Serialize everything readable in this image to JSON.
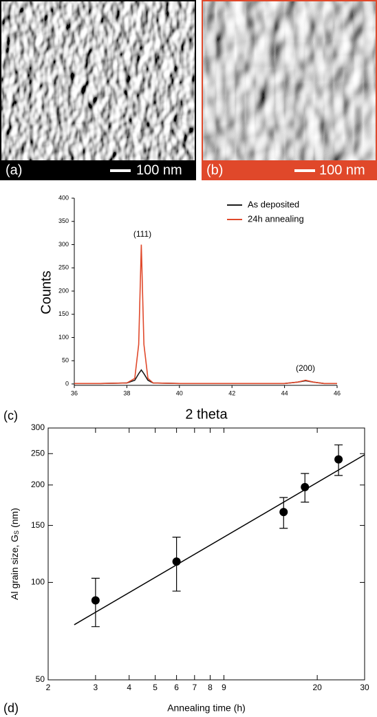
{
  "images": [
    {
      "label": "(a)",
      "scale_bar": "100 nm"
    },
    {
      "label": "(b)",
      "scale_bar": "100 nm"
    }
  ],
  "chart_data": [
    {
      "type": "line",
      "panel_label": "(c)",
      "x_label": "2 theta",
      "y_label": "Counts",
      "xlim": [
        36,
        46
      ],
      "ylim": [
        -3,
        400
      ],
      "xticks": [
        36,
        38,
        40,
        42,
        44,
        46
      ],
      "yticks": [
        0,
        50,
        100,
        150,
        200,
        250,
        300,
        350,
        400
      ],
      "annotations": [
        "(111)",
        "(200)"
      ],
      "series": [
        {
          "name": "As deposited",
          "color": "#1a1a1a",
          "x": [
            36,
            37,
            38,
            38.3,
            38.45,
            38.55,
            38.65,
            38.8,
            39,
            40,
            42,
            44,
            44.5,
            44.8,
            45.1,
            45.5,
            46
          ],
          "y": [
            1,
            1,
            2,
            8,
            22,
            30,
            22,
            8,
            2,
            1,
            1,
            1,
            4,
            7,
            4,
            1,
            1
          ]
        },
        {
          "name": "24h annealing",
          "color": "#e0482a",
          "x": [
            36,
            37,
            38,
            38.3,
            38.45,
            38.55,
            38.65,
            38.8,
            39,
            40,
            42,
            44,
            44.5,
            44.8,
            45.1,
            45.5,
            46
          ],
          "y": [
            1,
            1,
            2,
            12,
            85,
            300,
            85,
            12,
            2,
            1,
            1,
            1,
            4,
            8,
            4,
            1,
            1
          ]
        }
      ]
    },
    {
      "type": "loglog",
      "panel_label": "(d)",
      "x_label": "Annealing time (h)",
      "y_label": "Al grain size, G",
      "y_label_sub": "S",
      "y_label_unit": "(nm)",
      "xlim": [
        2,
        30
      ],
      "ylim": [
        50,
        300
      ],
      "log_x": true,
      "log_y": true,
      "xticks": [
        2,
        3,
        4,
        5,
        6,
        7,
        8,
        9,
        20,
        30
      ],
      "yticks": [
        50,
        100,
        150,
        200,
        250,
        300
      ],
      "x": [
        3,
        6,
        15,
        18,
        24
      ],
      "values": [
        88,
        116,
        165,
        197,
        240
      ],
      "errors": [
        15,
        22,
        18,
        20,
        26
      ],
      "color": "#000000",
      "fit": {
        "x": [
          2.5,
          30
        ],
        "y": [
          74,
          248
        ]
      }
    }
  ]
}
